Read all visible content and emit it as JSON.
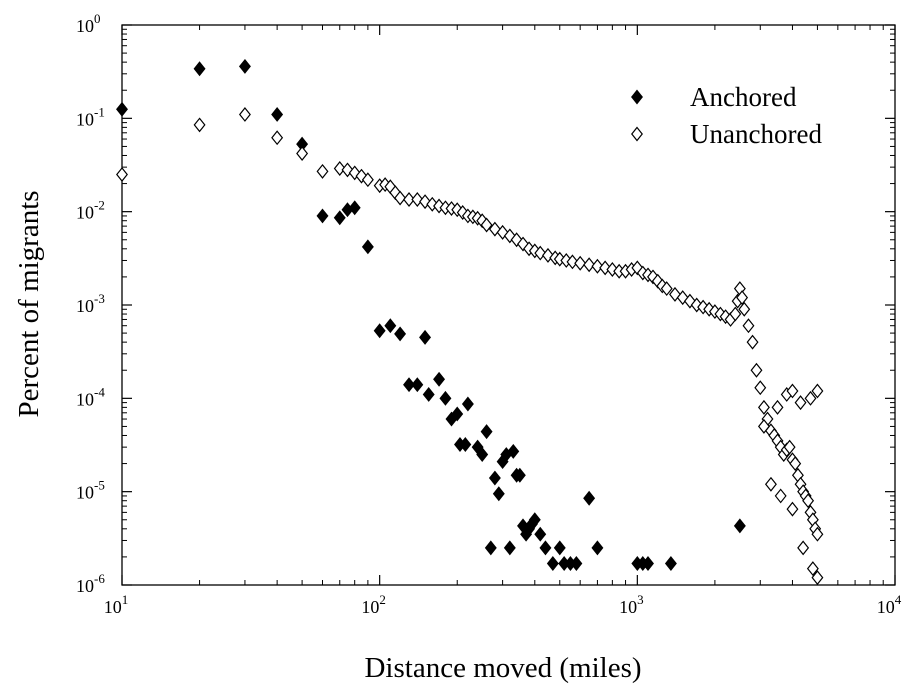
{
  "chart_data": {
    "type": "scatter",
    "title": "",
    "xlabel": "Distance moved (miles)",
    "ylabel": "Percent of migrants",
    "x_scale": "log",
    "y_scale": "log",
    "xlim": [
      10,
      10000
    ],
    "ylim": [
      1e-06,
      1
    ],
    "grid": false,
    "legend_position": "top-right",
    "x_ticks": [
      {
        "base": "10",
        "exp": "1",
        "value": 10
      },
      {
        "base": "10",
        "exp": "2",
        "value": 100
      },
      {
        "base": "10",
        "exp": "3",
        "value": 1000
      },
      {
        "base": "10",
        "exp": "4",
        "value": 10000
      }
    ],
    "y_ticks": [
      {
        "base": "10",
        "exp": "0",
        "value": 1
      },
      {
        "base": "10",
        "exp": "-1",
        "value": 0.1
      },
      {
        "base": "10",
        "exp": "-2",
        "value": 0.01
      },
      {
        "base": "10",
        "exp": "-3",
        "value": 0.001
      },
      {
        "base": "10",
        "exp": "-4",
        "value": 0.0001
      },
      {
        "base": "10",
        "exp": "-5",
        "value": 1e-05
      },
      {
        "base": "10",
        "exp": "-6",
        "value": 1e-06
      }
    ],
    "series": [
      {
        "name": "Anchored",
        "marker": "filled-diamond",
        "color": "#000000",
        "points": [
          [
            10,
            0.125
          ],
          [
            20,
            0.34
          ],
          [
            30,
            0.36
          ],
          [
            40,
            0.11
          ],
          [
            50,
            0.053
          ],
          [
            60,
            0.009
          ],
          [
            70,
            0.0086
          ],
          [
            75,
            0.0105
          ],
          [
            80,
            0.011
          ],
          [
            90,
            0.0042
          ],
          [
            100,
            0.00053
          ],
          [
            110,
            0.0006
          ],
          [
            120,
            0.00049
          ],
          [
            130,
            0.00014
          ],
          [
            140,
            0.00014
          ],
          [
            150,
            0.00045
          ],
          [
            155,
            0.00011
          ],
          [
            170,
            0.00016
          ],
          [
            180,
            0.0001
          ],
          [
            190,
            6e-05
          ],
          [
            200,
            6.8e-05
          ],
          [
            205,
            3.2e-05
          ],
          [
            215,
            3.2e-05
          ],
          [
            220,
            8.7e-05
          ],
          [
            240,
            3e-05
          ],
          [
            250,
            2.5e-05
          ],
          [
            260,
            4.4e-05
          ],
          [
            270,
            2.5e-06
          ],
          [
            280,
            1.4e-05
          ],
          [
            290,
            9.5e-06
          ],
          [
            300,
            2.1e-05
          ],
          [
            310,
            2.5e-05
          ],
          [
            320,
            2.5e-06
          ],
          [
            330,
            2.7e-05
          ],
          [
            340,
            1.5e-05
          ],
          [
            350,
            1.5e-05
          ],
          [
            360,
            4.3e-06
          ],
          [
            370,
            3.5e-06
          ],
          [
            380,
            4e-06
          ],
          [
            390,
            4.5e-06
          ],
          [
            400,
            5e-06
          ],
          [
            420,
            3.5e-06
          ],
          [
            440,
            2.5e-06
          ],
          [
            470,
            1.7e-06
          ],
          [
            500,
            2.5e-06
          ],
          [
            520,
            1.7e-06
          ],
          [
            550,
            1.7e-06
          ],
          [
            580,
            1.7e-06
          ],
          [
            650,
            8.5e-06
          ],
          [
            700,
            2.5e-06
          ],
          [
            1000,
            1.7e-06
          ],
          [
            1050,
            1.7e-06
          ],
          [
            1100,
            1.7e-06
          ],
          [
            1350,
            1.7e-06
          ],
          [
            2500,
            4.3e-06
          ]
        ]
      },
      {
        "name": "Unanchored",
        "marker": "open-diamond",
        "color": "#000000",
        "points": [
          [
            10,
            0.025
          ],
          [
            20,
            0.085
          ],
          [
            30,
            0.11
          ],
          [
            40,
            0.062
          ],
          [
            50,
            0.042
          ],
          [
            60,
            0.027
          ],
          [
            70,
            0.029
          ],
          [
            75,
            0.028
          ],
          [
            80,
            0.026
          ],
          [
            85,
            0.024
          ],
          [
            90,
            0.022
          ],
          [
            100,
            0.019
          ],
          [
            105,
            0.0195
          ],
          [
            110,
            0.0185
          ],
          [
            115,
            0.016
          ],
          [
            120,
            0.014
          ],
          [
            130,
            0.0135
          ],
          [
            140,
            0.0135
          ],
          [
            150,
            0.0128
          ],
          [
            160,
            0.012
          ],
          [
            170,
            0.0115
          ],
          [
            180,
            0.011
          ],
          [
            190,
            0.0108
          ],
          [
            200,
            0.0105
          ],
          [
            210,
            0.0098
          ],
          [
            220,
            0.009
          ],
          [
            230,
            0.0088
          ],
          [
            240,
            0.0085
          ],
          [
            250,
            0.008
          ],
          [
            260,
            0.0072
          ],
          [
            280,
            0.0065
          ],
          [
            300,
            0.006
          ],
          [
            320,
            0.0055
          ],
          [
            340,
            0.005
          ],
          [
            360,
            0.0045
          ],
          [
            380,
            0.004
          ],
          [
            400,
            0.0038
          ],
          [
            420,
            0.0036
          ],
          [
            450,
            0.0034
          ],
          [
            480,
            0.0032
          ],
          [
            500,
            0.0031
          ],
          [
            530,
            0.003
          ],
          [
            560,
            0.0029
          ],
          [
            600,
            0.0028
          ],
          [
            650,
            0.0027
          ],
          [
            700,
            0.0026
          ],
          [
            750,
            0.0025
          ],
          [
            800,
            0.0024
          ],
          [
            850,
            0.0023
          ],
          [
            900,
            0.0023
          ],
          [
            950,
            0.0024
          ],
          [
            1000,
            0.0025
          ],
          [
            1050,
            0.0022
          ],
          [
            1100,
            0.0021
          ],
          [
            1150,
            0.002
          ],
          [
            1200,
            0.0018
          ],
          [
            1250,
            0.0016
          ],
          [
            1300,
            0.0015
          ],
          [
            1400,
            0.0013
          ],
          [
            1500,
            0.0012
          ],
          [
            1600,
            0.0011
          ],
          [
            1700,
            0.001
          ],
          [
            1800,
            0.00095
          ],
          [
            1900,
            0.0009
          ],
          [
            2000,
            0.00085
          ],
          [
            2100,
            0.0008
          ],
          [
            2200,
            0.00075
          ],
          [
            2300,
            0.0007
          ],
          [
            2400,
            0.0008
          ],
          [
            2450,
            0.0011
          ],
          [
            2500,
            0.0015
          ],
          [
            2550,
            0.0012
          ],
          [
            2600,
            0.0009
          ],
          [
            2700,
            0.0006
          ],
          [
            2800,
            0.0004
          ],
          [
            2900,
            0.0002
          ],
          [
            3000,
            0.00013
          ],
          [
            3100,
            8e-05
          ],
          [
            3200,
            6e-05
          ],
          [
            3300,
            4.5e-05
          ],
          [
            3400,
            4e-05
          ],
          [
            3500,
            3.5e-05
          ],
          [
            3600,
            3e-05
          ],
          [
            3700,
            2.5e-05
          ],
          [
            3800,
            2.8e-05
          ],
          [
            3900,
            3e-05
          ],
          [
            4000,
            2.2e-05
          ],
          [
            4100,
            2e-05
          ],
          [
            4200,
            1.5e-05
          ],
          [
            4300,
            1.2e-05
          ],
          [
            4400,
            1e-05
          ],
          [
            4500,
            9e-06
          ],
          [
            4600,
            8e-06
          ],
          [
            4700,
            6e-06
          ],
          [
            4800,
            5e-06
          ],
          [
            4900,
            4e-06
          ],
          [
            5000,
            3.5e-06
          ],
          [
            3100,
            5e-05
          ],
          [
            3500,
            8e-05
          ],
          [
            3800,
            0.00011
          ],
          [
            4000,
            0.00012
          ],
          [
            4300,
            9e-05
          ],
          [
            4700,
            0.0001
          ],
          [
            5000,
            0.00012
          ],
          [
            3300,
            1.2e-05
          ],
          [
            3600,
            9e-06
          ],
          [
            4000,
            6.5e-06
          ],
          [
            4400,
            2.5e-06
          ],
          [
            4800,
            1.5e-06
          ],
          [
            5000,
            1.2e-06
          ]
        ]
      }
    ]
  }
}
